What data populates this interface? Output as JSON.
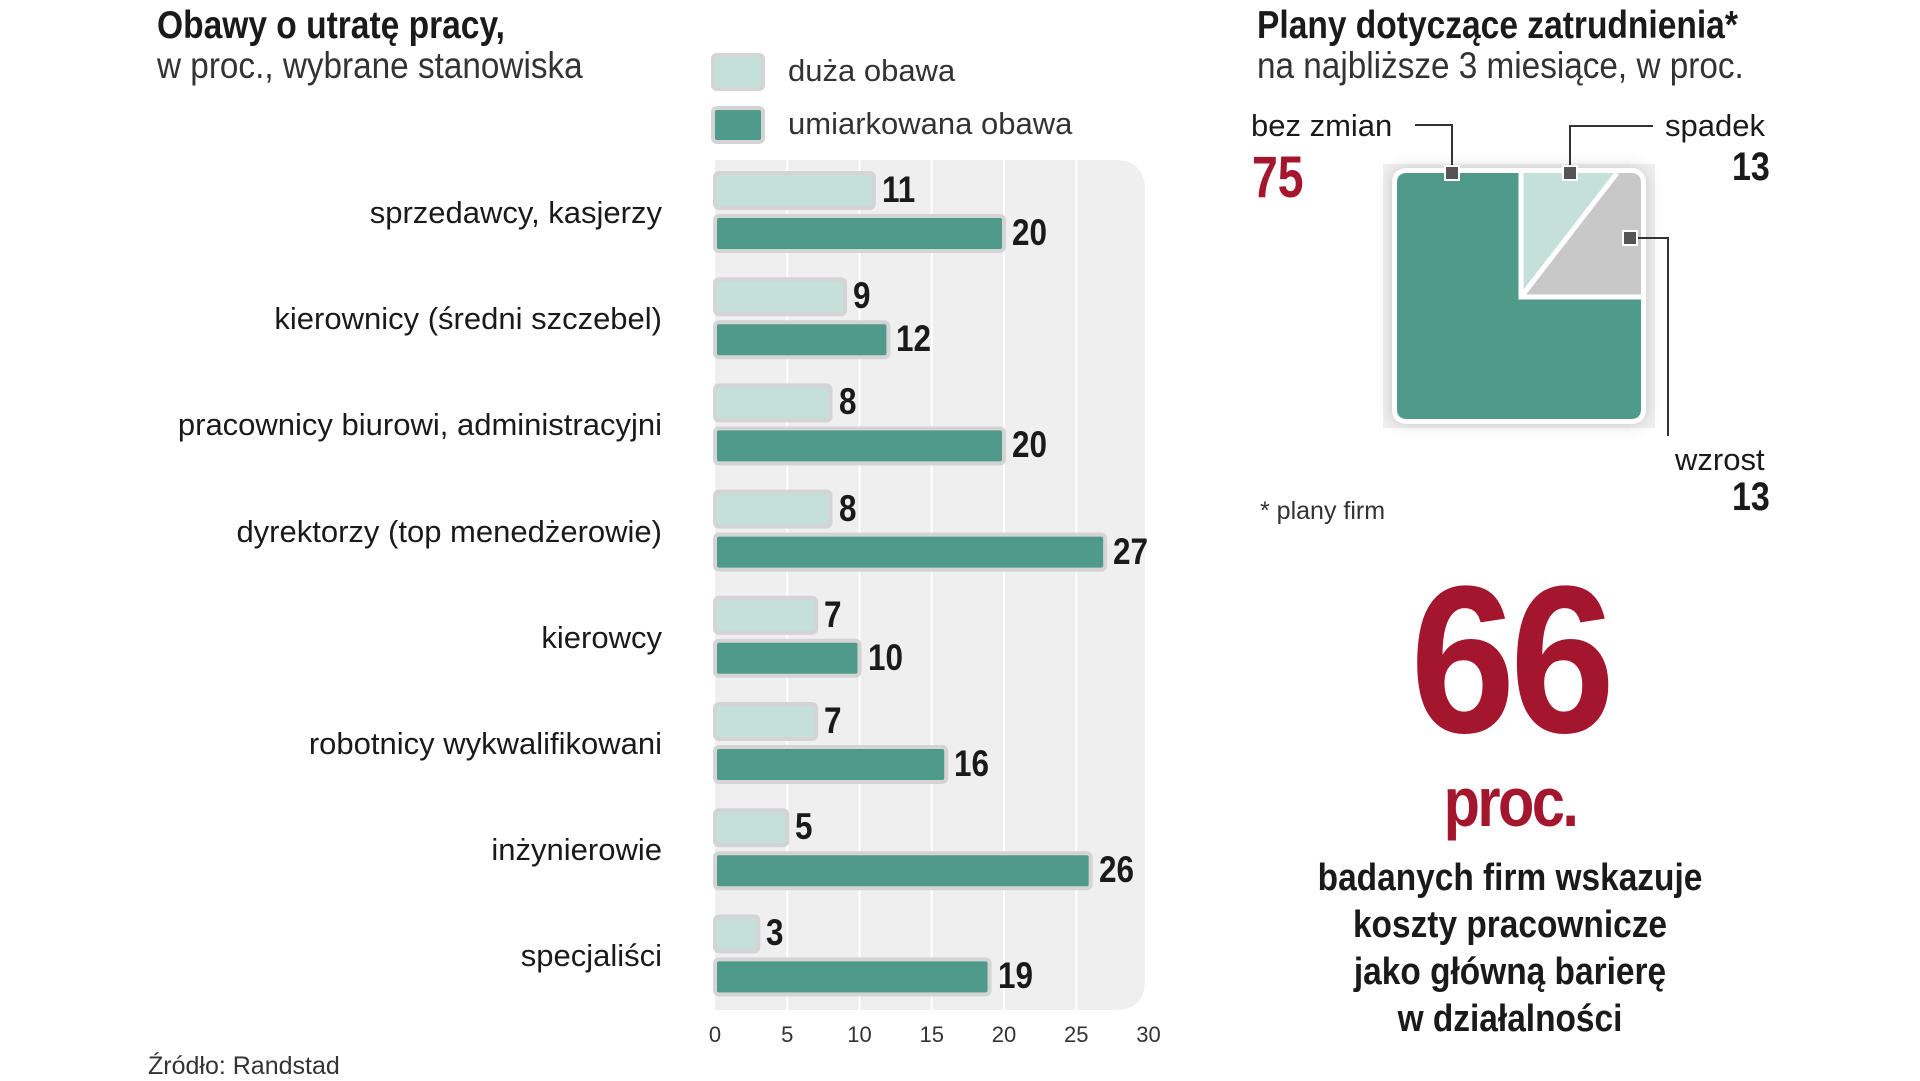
{
  "left": {
    "title": "Obawy o utratę pracy,",
    "subtitle": "w proc., wybrane stanowiska",
    "source": "Źródło: Randstad"
  },
  "right": {
    "title": "Plany dotyczące zatrudnienia*",
    "subtitle": "na najbliższe 3 miesiące, w proc.",
    "footnote": "* plany firm",
    "big_value": "66",
    "big_unit": "proc.",
    "statement_lines": [
      "badanych firm wskazuje",
      "koszty pracownicze",
      "jako główną barierę",
      "w działalności"
    ]
  },
  "colors": {
    "light_series": "#c5e0d8",
    "dark_series": "#4f9a8b",
    "bar_outline": "#d4d4d4",
    "plot_bg": "#efefef",
    "gridline": "#ffffff",
    "gray_segment": "#c8c8c8",
    "accent_red": "#a3162d"
  },
  "chart_data": [
    {
      "type": "bar",
      "orientation": "horizontal",
      "categories": [
        "sprzedawcy, kasjerzy",
        "kierownicy (średni szczebel)",
        "pracownicy biurowi, administracyjni",
        "dyrektorzy (top menedżerowie)",
        "kierowcy",
        "robotnicy wykwalifikowani",
        "inżynierowie",
        "specjaliści"
      ],
      "series": [
        {
          "name": "duża obawa",
          "values": [
            11,
            9,
            8,
            8,
            7,
            7,
            5,
            3
          ]
        },
        {
          "name": "umiarkowana obawa",
          "values": [
            20,
            12,
            20,
            27,
            10,
            16,
            26,
            19
          ]
        }
      ],
      "xticks": [
        0,
        5,
        10,
        15,
        20,
        25,
        30
      ],
      "xlim": [
        0,
        30
      ],
      "grid": "vertical",
      "legend": "top"
    },
    {
      "type": "pie",
      "shape": "square",
      "labels": [
        "bez zmian",
        "spadek",
        "wzrost"
      ],
      "values": [
        75,
        13,
        13
      ]
    }
  ]
}
